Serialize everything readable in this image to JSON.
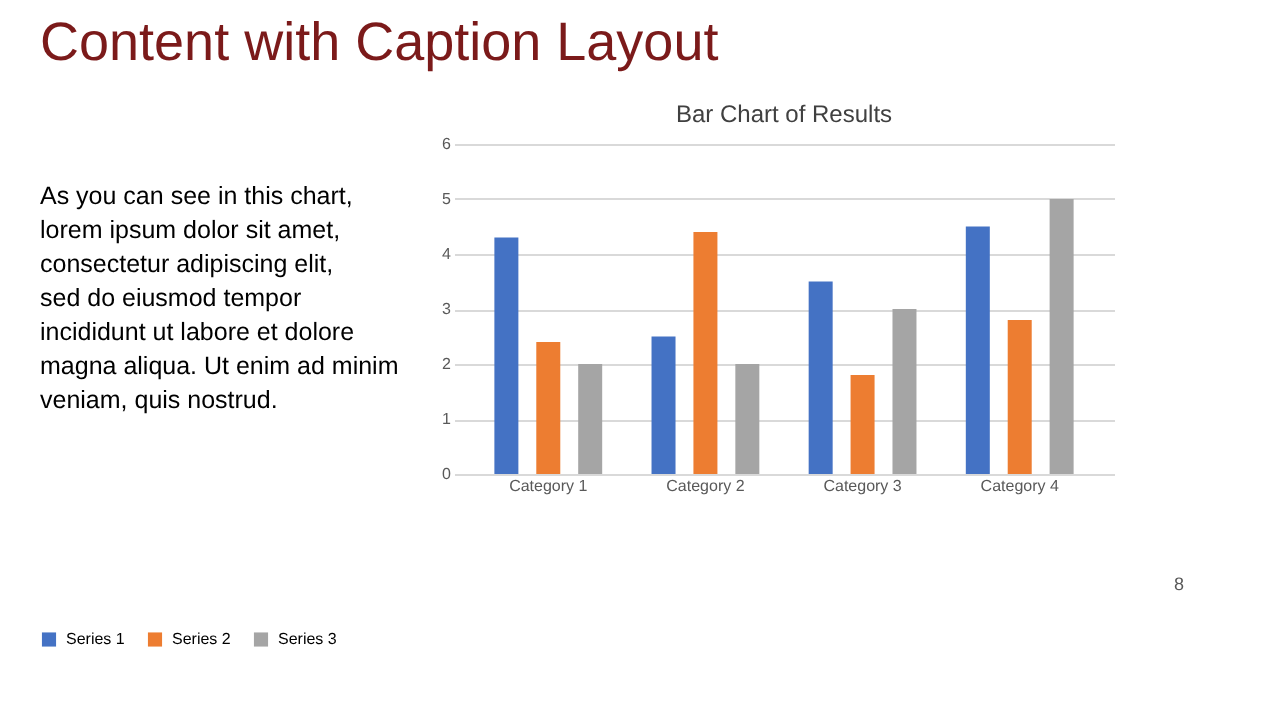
{
  "chart_data": {
    "type": "bar",
    "title": "Bar Chart of Results",
    "subtitle": "Content with Caption Layout",
    "categories": [
      "Category 1",
      "Category 2",
      "Category 3",
      "Category 4"
    ],
    "series": [
      {
        "name": "Series 1",
        "color": "#4472c4",
        "values": [
          4.3,
          2.5,
          3.5,
          4.5
        ]
      },
      {
        "name": "Series 2",
        "color": "#ed7d31",
        "values": [
          2.4,
          4.4,
          1.8,
          2.8
        ]
      },
      {
        "name": "Series 3",
        "color": "#a5a5a5",
        "values": [
          2,
          2,
          3,
          5
        ]
      }
    ],
    "ylim": [
      0,
      6
    ],
    "yticks": [
      0,
      1,
      2,
      3,
      4,
      5,
      6
    ],
    "grid": "y",
    "legend": "bottom",
    "annotations": [
      "As you can see in this chart, lorem ipsum dolor sit amet, consectetur adipiscing elit, sed do eiusmod tempor incididunt ut labore et dolore magna aliqua. Ut enim ad minim veniam, quis nostrud.",
      "8"
    ]
  }
}
